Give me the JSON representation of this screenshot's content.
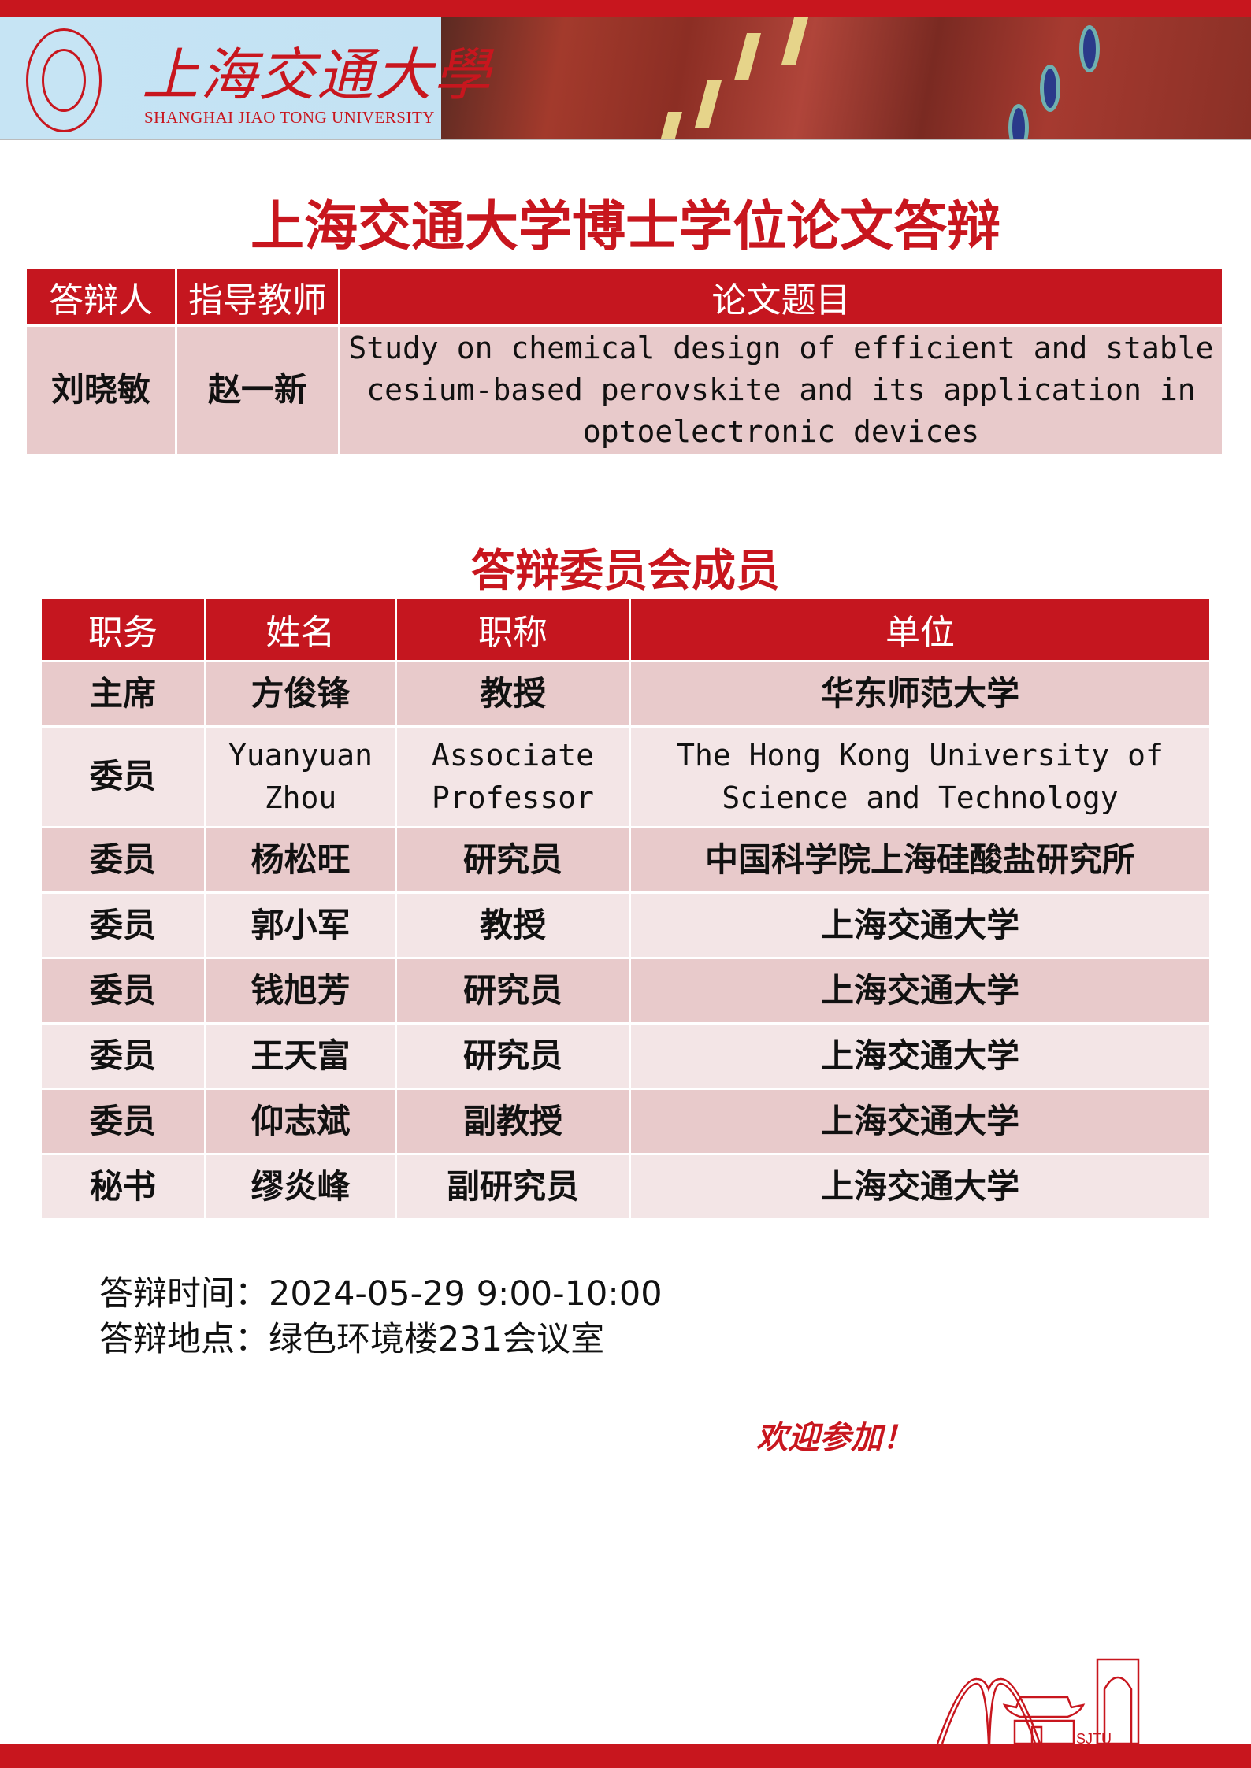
{
  "header": {
    "logo_cn": "上海交通大學",
    "logo_en": "SHANGHAI JIAO TONG UNIVERSITY"
  },
  "title": "上海交通大学博士学位论文答辩",
  "thesis_table": {
    "headers": [
      "答辩人",
      "指导教师",
      "论文题目"
    ],
    "row": {
      "candidate": "刘晓敏",
      "advisor": "赵一新",
      "topic": "Study on chemical design of efficient and stable cesium-based perovskite and its application in optoelectronic devices"
    }
  },
  "committee_title": "答辩委员会成员",
  "committee_table": {
    "headers": [
      "职务",
      "姓名",
      "职称",
      "单位"
    ],
    "rows": [
      {
        "role": "主席",
        "name": "方俊锋",
        "title": "教授",
        "org": "华东师范大学"
      },
      {
        "role": "委员",
        "name": "Yuanyuan Zhou",
        "title": "Associate Professor",
        "org": "The Hong Kong University of Science and Technology"
      },
      {
        "role": "委员",
        "name": "杨松旺",
        "title": "研究员",
        "org": "中国科学院上海硅酸盐研究所"
      },
      {
        "role": "委员",
        "name": "郭小军",
        "title": "教授",
        "org": "上海交通大学"
      },
      {
        "role": "委员",
        "name": "钱旭芳",
        "title": "研究员",
        "org": "上海交通大学"
      },
      {
        "role": "委员",
        "name": "王天富",
        "title": "研究员",
        "org": "上海交通大学"
      },
      {
        "role": "委员",
        "name": "仰志斌",
        "title": "副教授",
        "org": "上海交通大学"
      },
      {
        "role": "秘书",
        "name": "缪炎峰",
        "title": "副研究员",
        "org": "上海交通大学"
      }
    ]
  },
  "info": {
    "time": "答辩时间：2024-05-29  9:00-10:00",
    "place": "答辩地点：绿色环境楼231会议室"
  },
  "welcome": "欢迎参加！",
  "footer": {
    "skyline_text": "SJTU"
  },
  "colors": {
    "accent": "#c8161e",
    "row_dark": "#e8cacb",
    "row_light": "#f3e5e6"
  }
}
